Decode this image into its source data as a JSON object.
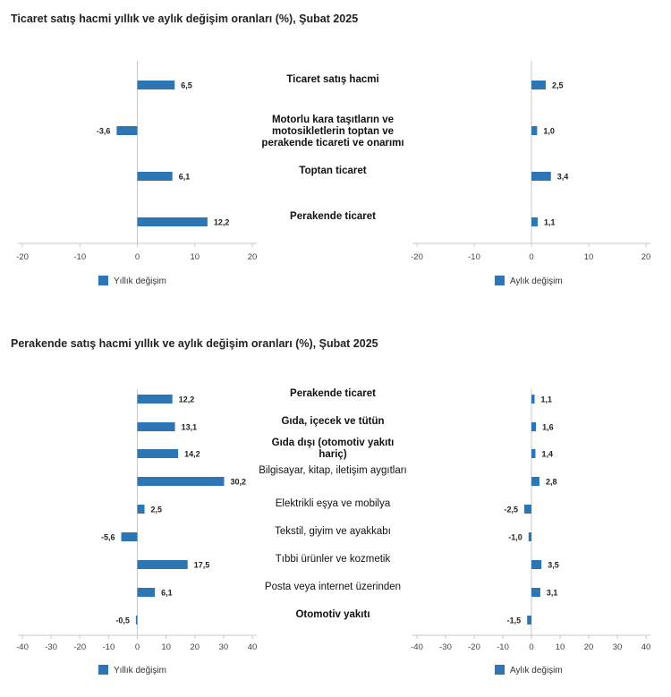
{
  "colors": {
    "bar": "#2e75b6",
    "axis": "#c8c8c8"
  },
  "chart_data": [
    {
      "type": "bar",
      "orientation": "horizontal",
      "title": "Ticaret satış hacmi yıllık ve aylık değişim oranları (%), Şubat 2025",
      "categories": [
        "Ticaret satış hacmi",
        "Motorlu kara taşıtların ve motosikletlerin toptan ve perakende ticareti ve onarımı",
        "Toptan ticaret",
        "Perakende ticaret"
      ],
      "category_bold": [
        true,
        true,
        true,
        true
      ],
      "series": [
        {
          "name": "Yıllık değişim",
          "values": [
            6.5,
            -3.6,
            6.1,
            12.2
          ],
          "labels": [
            "6,5",
            "-3,6",
            "6,1",
            "12,2"
          ],
          "xlim": [
            -20,
            20
          ],
          "ticks": [
            -20,
            -10,
            0,
            10,
            20
          ]
        },
        {
          "name": "Aylık değişim",
          "values": [
            2.5,
            1.0,
            3.4,
            1.1
          ],
          "labels": [
            "2,5",
            "1,0",
            "3,4",
            "1,1"
          ],
          "xlim": [
            -20,
            20
          ],
          "ticks": [
            -20,
            -10,
            0,
            10,
            20
          ]
        }
      ]
    },
    {
      "type": "bar",
      "orientation": "horizontal",
      "title": "Perakende satış hacmi yıllık ve aylık değişim oranları (%), Şubat 2025",
      "categories": [
        "Perakende ticaret",
        "Gıda, içecek ve tütün",
        "Gıda dışı (otomotiv yakıtı hariç)",
        "Bilgisayar, kitap, iletişim aygıtları",
        "Elektrikli eşya ve mobilya",
        "Tekstil, giyim ve ayakkabı",
        "Tıbbi ürünler ve kozmetik",
        "Posta veya internet üzerinden",
        "Otomotiv yakıtı"
      ],
      "category_bold": [
        true,
        true,
        true,
        false,
        false,
        false,
        false,
        false,
        true
      ],
      "series": [
        {
          "name": "Yıllık değişim",
          "values": [
            12.2,
            13.1,
            14.2,
            30.2,
            2.5,
            -5.6,
            17.5,
            6.1,
            -0.5
          ],
          "labels": [
            "12,2",
            "13,1",
            "14,2",
            "30,2",
            "2,5",
            "-5,6",
            "17,5",
            "6,1",
            "-0,5"
          ],
          "xlim": [
            -40,
            40
          ],
          "ticks": [
            -40,
            -30,
            -20,
            -10,
            0,
            10,
            20,
            30,
            40
          ]
        },
        {
          "name": "Aylık değişim",
          "values": [
            1.1,
            1.6,
            1.4,
            2.8,
            -2.5,
            -1.0,
            3.5,
            3.1,
            -1.5
          ],
          "labels": [
            "1,1",
            "1,6",
            "1,4",
            "2,8",
            "-2,5",
            "-1,0",
            "3,5",
            "3,1",
            "-1,5"
          ],
          "xlim": [
            -40,
            40
          ],
          "ticks": [
            -40,
            -30,
            -20,
            -10,
            0,
            10,
            20,
            30,
            40
          ]
        }
      ]
    }
  ]
}
